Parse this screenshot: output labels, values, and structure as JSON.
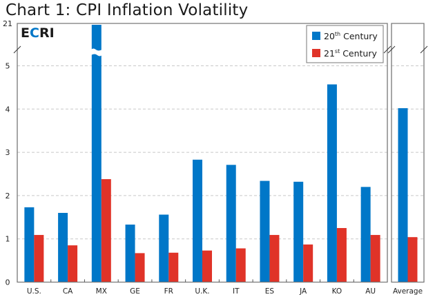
{
  "header": {
    "title": "Chart 1: CPI Inflation Volatility"
  },
  "logo": {
    "text_parts": [
      "E",
      "C",
      "RI"
    ],
    "colors": [
      "#1a1a1a",
      "#0077c8",
      "#1a1a1a"
    ]
  },
  "colors": {
    "series_20th": "#0077c8",
    "series_21st": "#e03328",
    "grid": "#c8c8c8",
    "frame": "#777777"
  },
  "chart_data": {
    "type": "bar",
    "title": "Chart 1: CPI Inflation Volatility",
    "xlabel": "",
    "ylabel": "",
    "ylim": [
      0,
      5
    ],
    "axis_break": {
      "from": 5,
      "to": 21,
      "top_tick_label": "21"
    },
    "yticks": [
      "0",
      "1",
      "2",
      "3",
      "4",
      "5"
    ],
    "grid": true,
    "legend_position": "top-right",
    "categories": [
      "U.S.",
      "CA",
      "MX",
      "GE",
      "FR",
      "U.K.",
      "IT",
      "ES",
      "JA",
      "KO",
      "AU"
    ],
    "series": [
      {
        "name": "20th Century",
        "name_base": "20",
        "name_sup": "th",
        "name_rest": " Century",
        "values": [
          1.73,
          1.6,
          21,
          1.33,
          1.56,
          2.83,
          2.71,
          2.34,
          2.32,
          4.57,
          2.2
        ]
      },
      {
        "name": "21st Century",
        "name_base": "21",
        "name_sup": "st",
        "name_rest": " Century",
        "values": [
          1.09,
          0.85,
          2.38,
          0.67,
          0.68,
          0.73,
          0.78,
          1.09,
          0.87,
          1.25,
          1.09
        ]
      }
    ],
    "average_panel": {
      "category": "Average",
      "values": [
        4.02,
        1.04
      ]
    }
  }
}
